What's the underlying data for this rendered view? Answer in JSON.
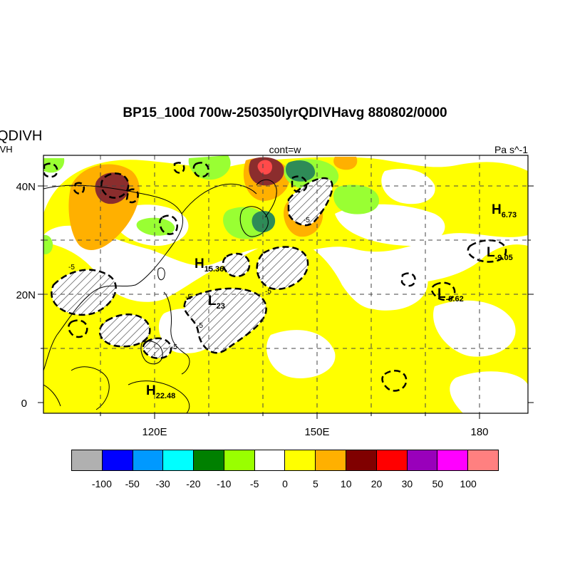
{
  "title": "BP15_100d 700w-250350lyrQDIVHavg  880802/0000",
  "left_title": "QDIVH",
  "left_subtitle": "IVH",
  "center_subtitle": "cont=w",
  "units": "Pa s^-1",
  "lat_labels": [
    "40N",
    "20N",
    "0"
  ],
  "lon_labels": [
    "120E",
    "150E",
    "180"
  ],
  "pressure_centers": [
    {
      "type": "H",
      "value": "15.36"
    },
    {
      "type": "L",
      "value": "23"
    },
    {
      "type": "H",
      "value": "22.48"
    },
    {
      "type": "H",
      "value": "6.73"
    },
    {
      "type": "L",
      "value": "-9.05"
    },
    {
      "type": "L",
      "value": "-8.62"
    }
  ],
  "contour_labels": [
    "-5",
    "-5",
    "-5",
    "-5",
    "-5",
    "-5"
  ],
  "colorbar": {
    "colors": [
      "#b0b0b0",
      "#0000ff",
      "#0099ff",
      "#00ffff",
      "#008000",
      "#99ff00",
      "#ffffff",
      "#ffff00",
      "#ffb000",
      "#800000",
      "#ff0000",
      "#9900bb",
      "#ff00ff",
      "#ff8080"
    ],
    "labels": [
      "-100",
      "-50",
      "-30",
      "-20",
      "-10",
      "-5",
      "0",
      "5",
      "10",
      "20",
      "30",
      "50",
      "100"
    ]
  },
  "fill_colors": {
    "yellow": "#ffff00",
    "orange": "#ffb000",
    "maroon": "#8b0000",
    "red": "#ff4040",
    "lightgreen": "#99ff33",
    "green": "#2e8b57",
    "darkgreen": "#1f7a3a"
  }
}
